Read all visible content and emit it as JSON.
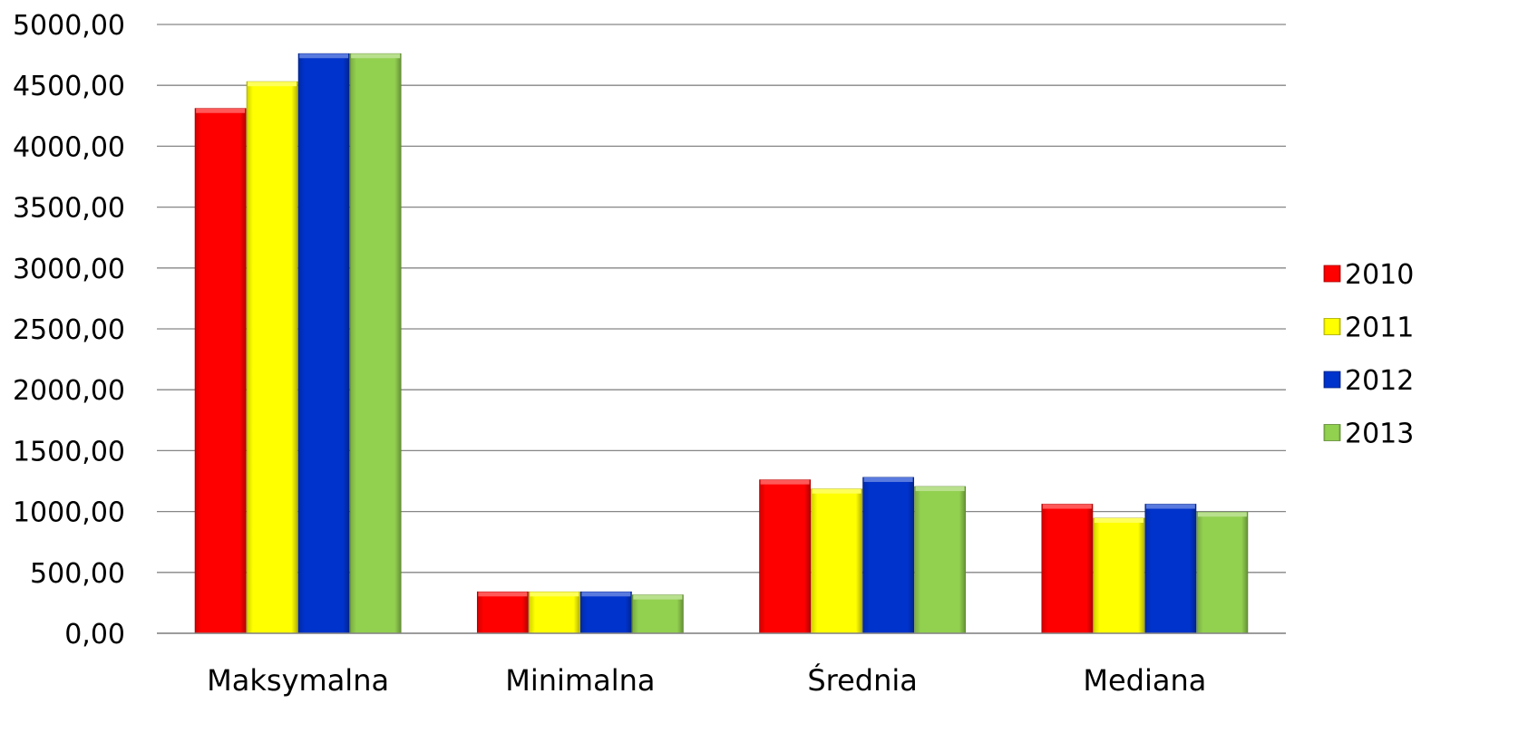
{
  "chart_data": {
    "type": "bar",
    "categories": [
      "Maksymalna",
      "Minimalna",
      "Średnia",
      "Mediana"
    ],
    "series": [
      {
        "name": "2010",
        "values": [
          4310,
          340,
          1260,
          1060
        ],
        "color": "#ff0000"
      },
      {
        "name": "2011",
        "values": [
          4530,
          340,
          1185,
          945
        ],
        "color": "#ffff00"
      },
      {
        "name": "2012",
        "values": [
          4760,
          340,
          1280,
          1060
        ],
        "color": "#0033cc"
      },
      {
        "name": "2013",
        "values": [
          4760,
          315,
          1205,
          995
        ],
        "color": "#92d050"
      }
    ],
    "ylim": [
      0,
      5000
    ],
    "yticks": [
      "0,00",
      "500,00",
      "1000,00",
      "1500,00",
      "2000,00",
      "2500,00",
      "3000,00",
      "3500,00",
      "4000,00",
      "4500,00",
      "5000,00"
    ],
    "grid": true,
    "legend": "right"
  }
}
